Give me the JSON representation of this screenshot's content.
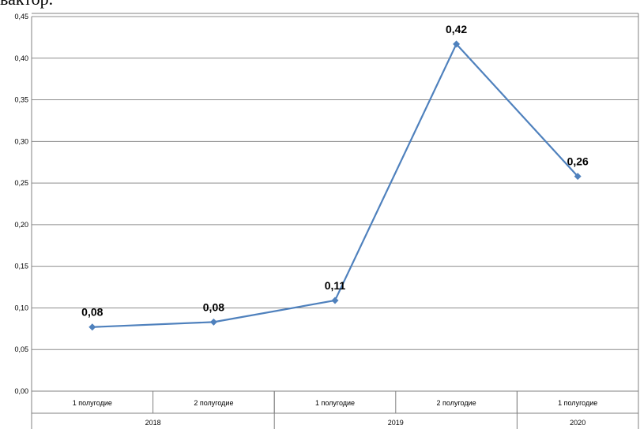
{
  "caption_fragment": "вактор.",
  "chart_data": {
    "type": "line",
    "title": "",
    "xlabel": "",
    "ylabel": "",
    "ylim": [
      0,
      0.45
    ],
    "y_ticks": [
      "0,00",
      "0,05",
      "0,10",
      "0,15",
      "0,20",
      "0,25",
      "0,30",
      "0,35",
      "0,40",
      "0,45"
    ],
    "grid": true,
    "legend": "none",
    "categories": [
      "1 полугодие",
      "2 полугодие",
      "1 полугодие",
      "2 полугодие",
      "1 полугодие"
    ],
    "groups": [
      {
        "label": "2018",
        "count": 2
      },
      {
        "label": "2019",
        "count": 2
      },
      {
        "label": "2020",
        "count": 1
      }
    ],
    "series": [
      {
        "values": [
          0.077,
          0.083,
          0.109,
          0.417,
          0.258
        ],
        "labels": [
          "0,08",
          "0,08",
          "0,11",
          "0,42",
          "0,26"
        ],
        "color": "#4f81bd"
      }
    ]
  }
}
